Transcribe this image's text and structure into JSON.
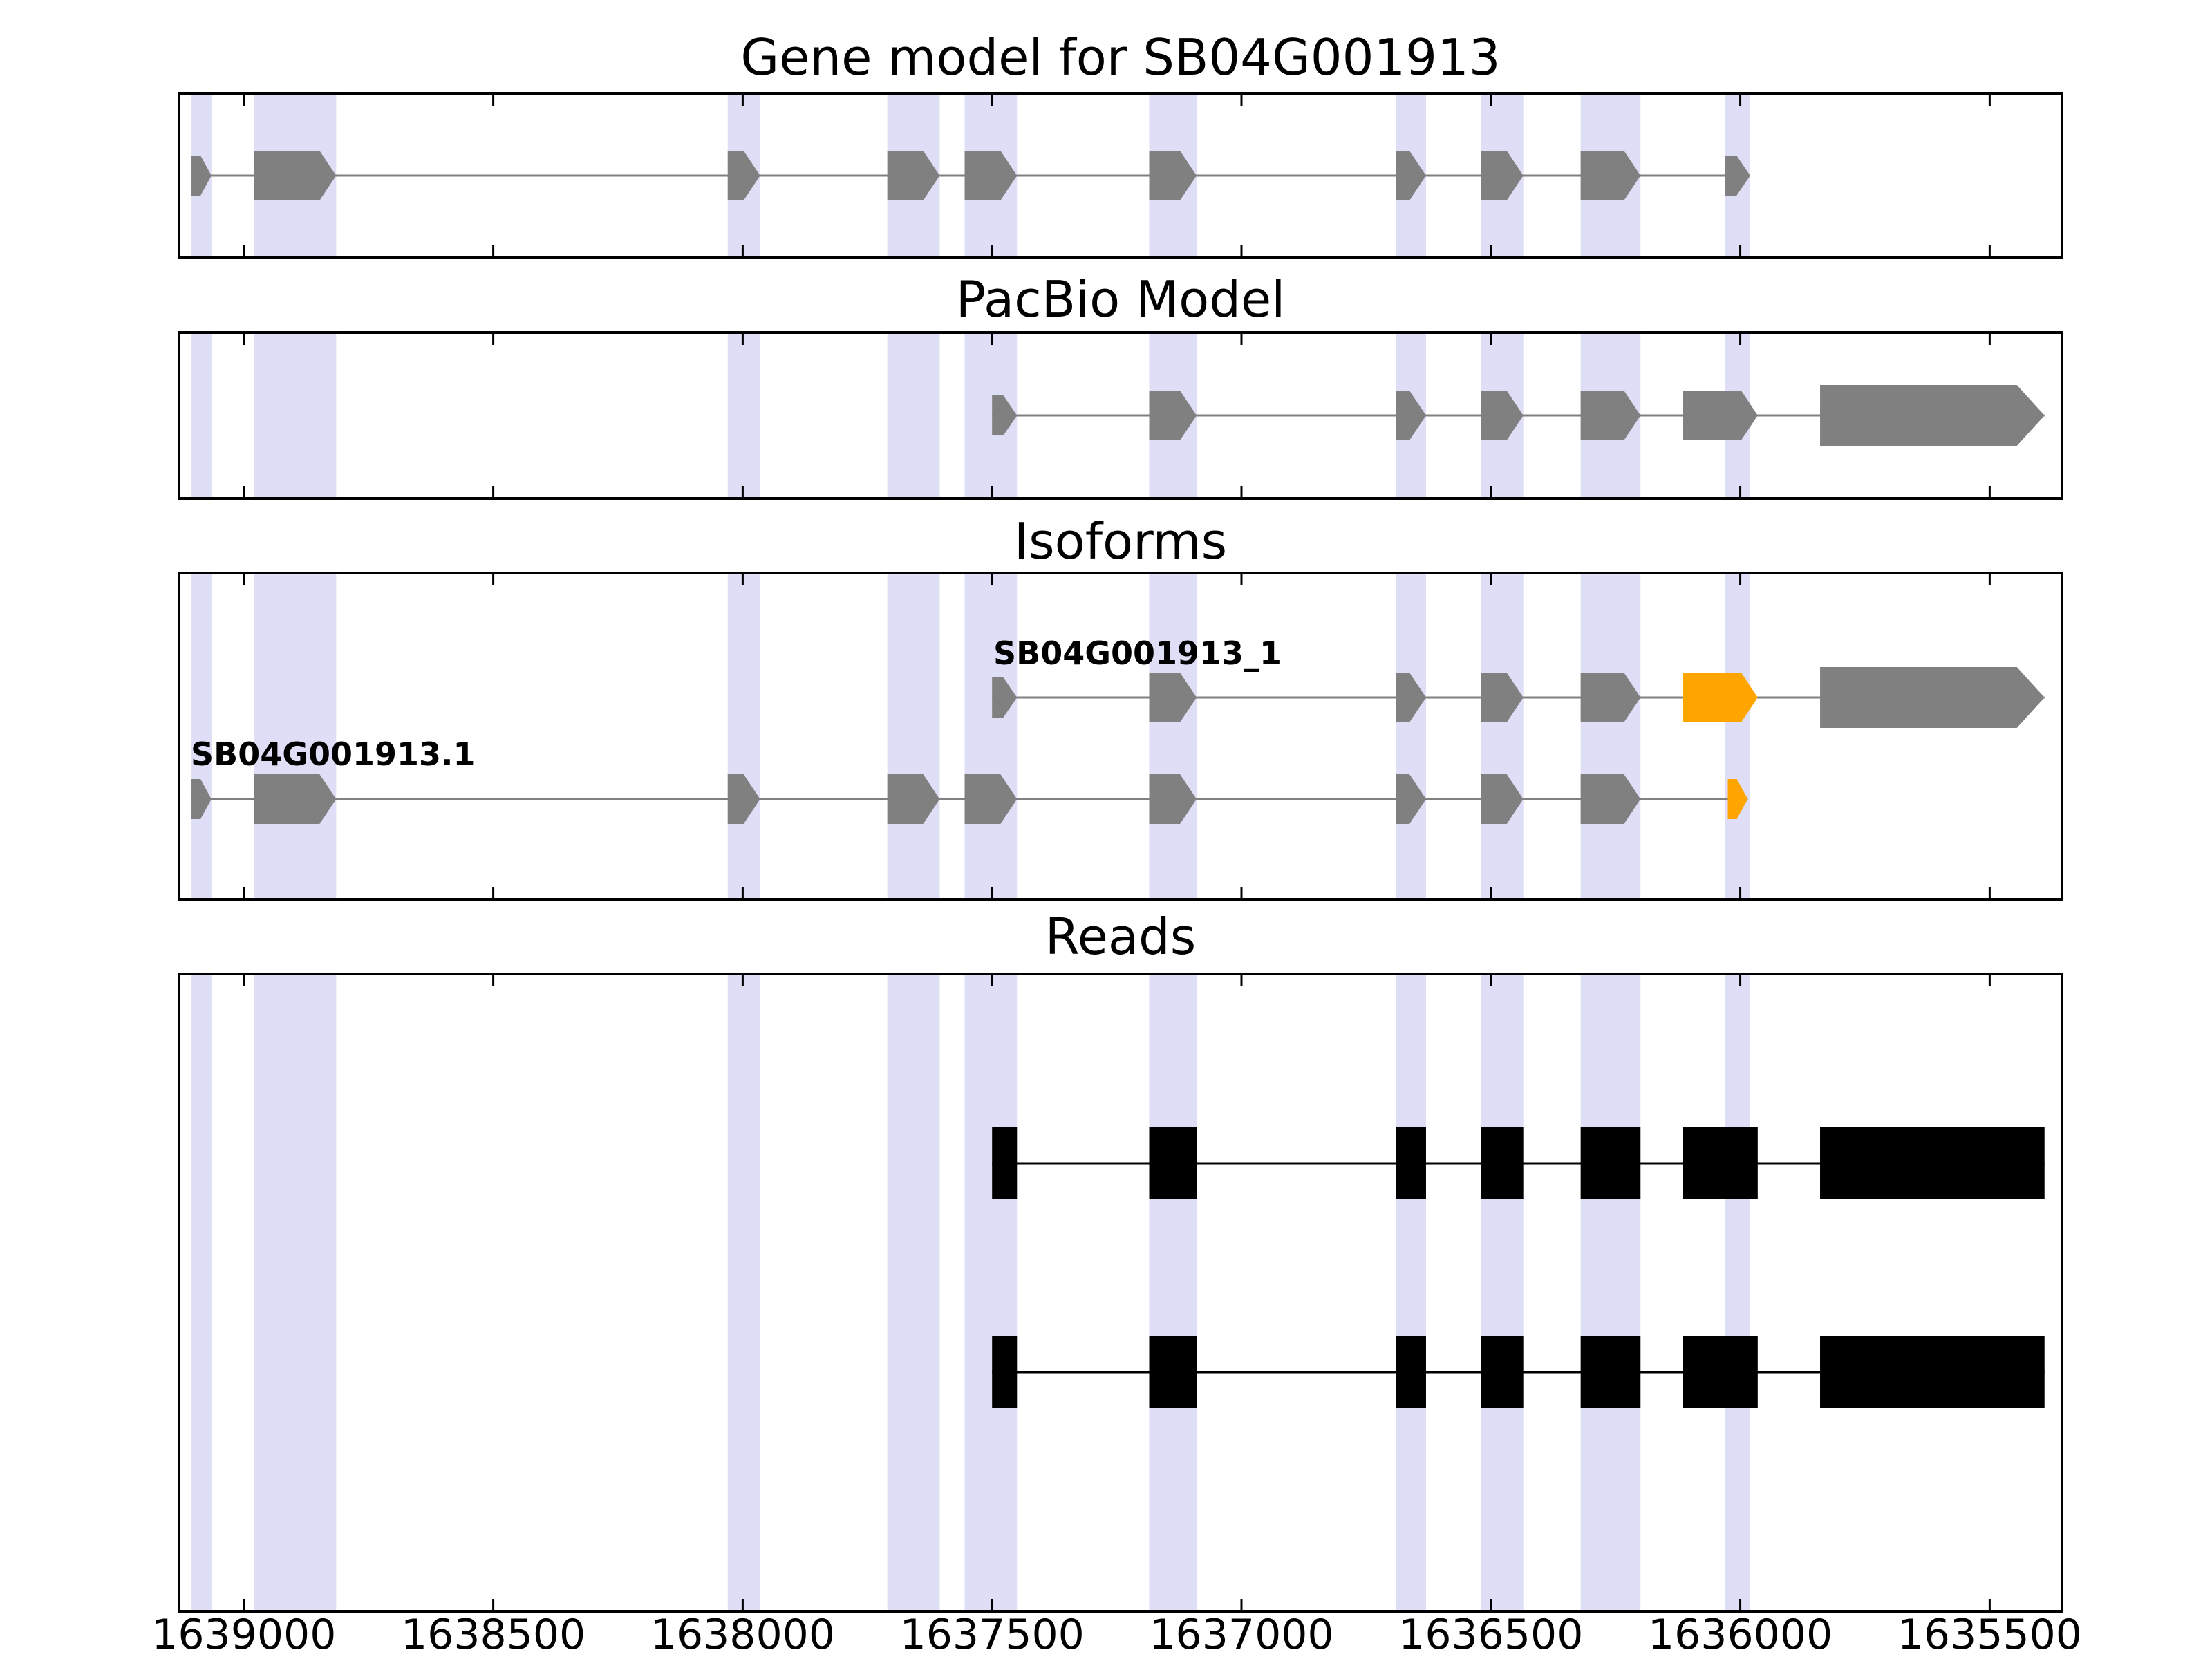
{
  "figure": {
    "background": "#ffffff",
    "colors": {
      "exon_gray": "#808080",
      "exon_orange": "#FFA500",
      "read_black": "#000000",
      "highlight_band": "#dedef6",
      "axis": "#000000"
    }
  },
  "chart_data": {
    "type": "gene-model-tracks",
    "x_axis": {
      "xlim": [
        1639130,
        1635355
      ],
      "reversed": true,
      "tick_values": [
        1639000,
        1638500,
        1638000,
        1637500,
        1637000,
        1636500,
        1636000,
        1635500
      ]
    },
    "highlight_bands": [
      [
        1639105,
        1639065
      ],
      [
        1638980,
        1638815
      ],
      [
        1638030,
        1637965
      ],
      [
        1637710,
        1637605
      ],
      [
        1637555,
        1637450
      ],
      [
        1637185,
        1637090
      ],
      [
        1636690,
        1636630
      ],
      [
        1636520,
        1636435
      ],
      [
        1636320,
        1636200
      ],
      [
        1636030,
        1635980
      ]
    ],
    "panels": [
      {
        "id": "gene-model",
        "title": "Gene model for SB04G001913",
        "tracks": [
          {
            "name": "SB04G001913",
            "style": "arrow",
            "color": "#808080",
            "exons": [
              [
                1639105,
                1639065
              ],
              [
                1638980,
                1638815
              ],
              [
                1638030,
                1637965
              ],
              [
                1637710,
                1637605
              ],
              [
                1637555,
                1637450
              ],
              [
                1637185,
                1637090
              ],
              [
                1636690,
                1636630
              ],
              [
                1636520,
                1636435
              ],
              [
                1636320,
                1636200
              ],
              [
                1636030,
                1635980
              ]
            ]
          }
        ]
      },
      {
        "id": "pacbio-model",
        "title": "PacBio Model",
        "tracks": [
          {
            "name": "pacbio_model",
            "style": "arrow",
            "color": "#808080",
            "exons": [
              [
                1637500,
                1637450
              ],
              [
                1637185,
                1637090
              ],
              [
                1636690,
                1636630
              ],
              [
                1636520,
                1636435
              ],
              [
                1636320,
                1636200
              ],
              [
                1636115,
                1635965
              ],
              [
                1635840,
                1635390
              ]
            ]
          }
        ]
      },
      {
        "id": "isoforms",
        "title": "Isoforms",
        "tracks": [
          {
            "name": "SB04G001913_1",
            "label": "SB04G001913_1",
            "style": "arrow",
            "color": "#808080",
            "exons": [
              [
                1637500,
                1637450
              ],
              [
                1637185,
                1637090
              ],
              [
                1636690,
                1636630
              ],
              [
                1636520,
                1636435
              ],
              [
                1636320,
                1636200
              ],
              [
                1636115,
                1635965,
                "orange"
              ],
              [
                1635840,
                1635390
              ]
            ]
          },
          {
            "name": "SB04G001913.1",
            "label": "SB04G001913.1",
            "style": "arrow",
            "color": "#808080",
            "exons": [
              [
                1639105,
                1639065
              ],
              [
                1638980,
                1638815
              ],
              [
                1638030,
                1637965
              ],
              [
                1637710,
                1637605
              ],
              [
                1637555,
                1637450
              ],
              [
                1637185,
                1637090
              ],
              [
                1636690,
                1636630
              ],
              [
                1636520,
                1636435
              ],
              [
                1636320,
                1636200
              ],
              [
                1636025,
                1635985,
                "orange"
              ]
            ]
          }
        ]
      },
      {
        "id": "reads",
        "title": "Reads",
        "tracks": [
          {
            "name": "read_1",
            "style": "rect",
            "color": "#000000",
            "exons": [
              [
                1637500,
                1637450
              ],
              [
                1637185,
                1637090
              ],
              [
                1636690,
                1636630
              ],
              [
                1636520,
                1636435
              ],
              [
                1636320,
                1636200
              ],
              [
                1636115,
                1635965
              ],
              [
                1635840,
                1635390
              ]
            ]
          },
          {
            "name": "read_2",
            "style": "rect",
            "color": "#000000",
            "exons": [
              [
                1637500,
                1637450
              ],
              [
                1637185,
                1637090
              ],
              [
                1636690,
                1636630
              ],
              [
                1636520,
                1636435
              ],
              [
                1636320,
                1636200
              ],
              [
                1636115,
                1635965
              ],
              [
                1635840,
                1635390
              ]
            ]
          }
        ]
      }
    ]
  }
}
